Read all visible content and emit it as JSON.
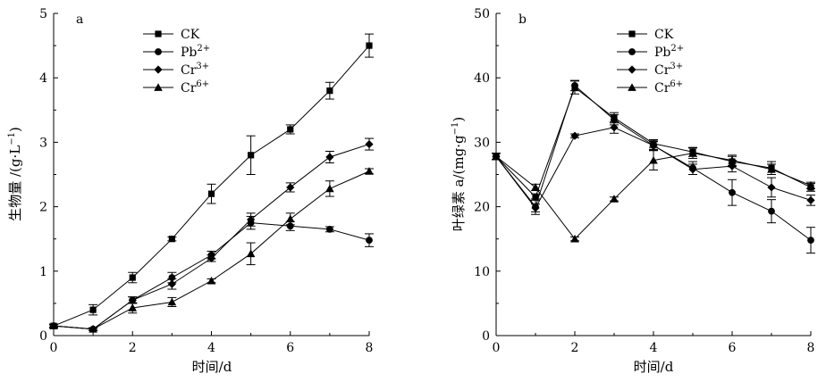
{
  "chart_data": [
    {
      "type": "line",
      "panel_label": "a",
      "xlabel": "时间/d",
      "ylabel": "生物量 /(g·L",
      "ylabel_sup": "−1",
      "ylabel_end": ")",
      "xlim": [
        0,
        8
      ],
      "ylim": [
        0,
        5
      ],
      "xticks": [
        0,
        2,
        4,
        6,
        8
      ],
      "yticks": [
        0,
        1,
        2,
        3,
        4,
        5
      ],
      "x": [
        0,
        1,
        2,
        3,
        4,
        5,
        6,
        7,
        8
      ],
      "series": [
        {
          "name": "CK",
          "label_base": "CK",
          "label_sup": "",
          "marker": "square",
          "values": [
            0.15,
            0.4,
            0.9,
            1.5,
            2.2,
            2.8,
            3.2,
            3.8,
            4.5
          ],
          "errors": [
            0.03,
            0.08,
            0.08,
            0.03,
            0.15,
            0.3,
            0.07,
            0.13,
            0.18
          ]
        },
        {
          "name": "Pb2+",
          "label_base": "Pb",
          "label_sup": "2+",
          "marker": "circle",
          "values": [
            0.15,
            0.1,
            0.55,
            0.9,
            1.25,
            1.75,
            1.7,
            1.65,
            1.48
          ],
          "errors": [
            0.02,
            0.02,
            0.05,
            0.08,
            0.06,
            0.1,
            0.07,
            0.04,
            0.1
          ]
        },
        {
          "name": "Cr3+",
          "label_base": "Cr",
          "label_sup": "3+",
          "marker": "diamond",
          "values": [
            0.15,
            0.1,
            0.55,
            0.8,
            1.2,
            1.8,
            2.3,
            2.77,
            2.97
          ],
          "errors": [
            0.02,
            0.02,
            0.05,
            0.08,
            0.05,
            0.1,
            0.07,
            0.09,
            0.09
          ]
        },
        {
          "name": "Cr6+",
          "label_base": "Cr",
          "label_sup": "6+",
          "marker": "triangle",
          "values": [
            0.15,
            0.1,
            0.43,
            0.52,
            0.85,
            1.27,
            1.81,
            2.28,
            2.55
          ],
          "errors": [
            0.02,
            0.02,
            0.08,
            0.07,
            0.03,
            0.17,
            0.09,
            0.12,
            0.04
          ]
        }
      ]
    },
    {
      "type": "line",
      "panel_label": "b",
      "xlabel": "时间/d",
      "ylabel": "叶绿素 a/(mg·g",
      "ylabel_sup": "−1",
      "ylabel_end": ")",
      "xlim": [
        0,
        8
      ],
      "ylim": [
        0,
        50
      ],
      "xticks": [
        0,
        2,
        4,
        6,
        8
      ],
      "yticks": [
        0,
        10,
        20,
        30,
        40,
        50
      ],
      "x": [
        0,
        1,
        2,
        3,
        4,
        5,
        6,
        7,
        8
      ],
      "series": [
        {
          "name": "CK",
          "label_base": "CK",
          "label_sup": "",
          "marker": "square",
          "values": [
            27.8,
            21.5,
            38.5,
            33.8,
            29.8,
            28.5,
            27.0,
            26.0,
            23.0
          ],
          "errors": [
            0.5,
            0.5,
            1.0,
            0.8,
            0.6,
            0.7,
            0.8,
            1.0,
            0.6
          ]
        },
        {
          "name": "Pb2+",
          "label_base": "Pb",
          "label_sup": "2+",
          "marker": "circle",
          "values": [
            27.8,
            20.0,
            38.8,
            33.5,
            29.5,
            26.0,
            22.2,
            19.3,
            14.8
          ],
          "errors": [
            0.5,
            1.2,
            0.8,
            0.8,
            0.7,
            1.0,
            2.0,
            1.8,
            2.0
          ]
        },
        {
          "name": "Cr3+",
          "label_base": "Cr",
          "label_sup": "3+",
          "marker": "diamond",
          "values": [
            27.8,
            19.8,
            31.0,
            32.3,
            29.5,
            25.8,
            26.3,
            23.0,
            21.0
          ],
          "errors": [
            0.5,
            0.6,
            0.3,
            0.9,
            0.6,
            0.8,
            0.9,
            1.5,
            0.8
          ]
        },
        {
          "name": "Cr6+",
          "label_base": "Cr",
          "label_sup": "6+",
          "marker": "triangle",
          "values": [
            27.8,
            23.0,
            15.0,
            21.2,
            27.2,
            28.3,
            27.2,
            25.8,
            23.3
          ],
          "errors": [
            0.5,
            0.5,
            0.3,
            0.3,
            1.5,
            0.8,
            0.8,
            0.8,
            0.5
          ]
        }
      ]
    }
  ]
}
